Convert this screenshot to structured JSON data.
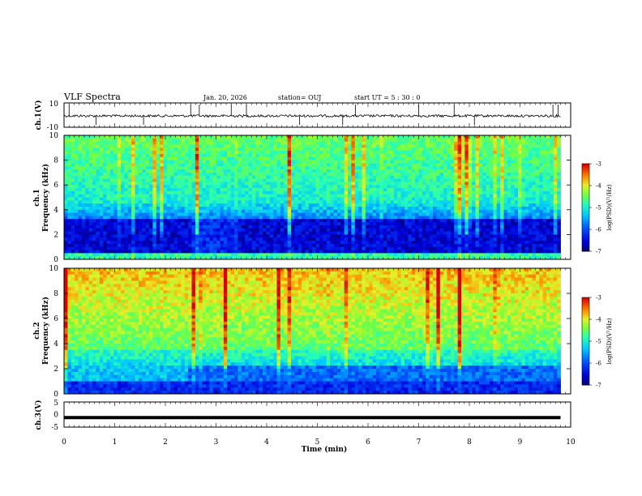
{
  "header": {
    "title": "VLF Spectra",
    "date": "Jan. 20, 2026",
    "station": "station= OUJ",
    "start": "start  UT =   5 : 30 : 0"
  },
  "chart_data": [
    {
      "type": "line",
      "ylabel": "ch.1(V)",
      "yticks": [
        "10",
        "-10"
      ],
      "ylim": [
        -10,
        10
      ],
      "xlim": [
        0,
        10
      ],
      "baseline": 0,
      "description_values": "noisy waveform around 0 V with spikes",
      "spikes_x": [
        0.1,
        0.63,
        1.57,
        2.5,
        2.67,
        3.3,
        3.6,
        4.65,
        5.5,
        5.75,
        7.0,
        7.7,
        8.1,
        9.65,
        9.75
      ]
    },
    {
      "type": "heatmap",
      "ylabel": "ch.1\nFrequency (kHz)",
      "ylabel_lines": [
        "ch.1",
        "Frequency (kHz)"
      ],
      "yticks": [
        "0",
        "2",
        "4",
        "6",
        "8",
        "10"
      ],
      "ylim": [
        0,
        10
      ],
      "xlim": [
        0,
        10
      ],
      "colorbar": {
        "label": "log(PSD)(V²/Hz)",
        "ticks": [
          "-3",
          "-4",
          "-5",
          "-6",
          "-7"
        ],
        "range": [
          -7,
          -3
        ]
      }
    },
    {
      "type": "heatmap",
      "ylabel": "ch.2\nFrequency (kHz)",
      "ylabel_lines": [
        "ch.2",
        "Frequency (kHz)"
      ],
      "yticks": [
        "0",
        "2",
        "4",
        "6",
        "8",
        "10"
      ],
      "ylim": [
        0,
        10
      ],
      "xlim": [
        0,
        10
      ],
      "colorbar": {
        "label": "log(PSD)(V²/Hz)",
        "ticks": [
          "-3",
          "-4",
          "-5",
          "-6",
          "-7"
        ],
        "range": [
          -7,
          -3
        ]
      }
    },
    {
      "type": "line",
      "ylabel": "ch.3(V)",
      "yticks": [
        "5",
        "0",
        "-5"
      ],
      "ylim": [
        -5,
        5
      ],
      "xlim": [
        0,
        10
      ],
      "values": [
        -1.2,
        -1.2
      ]
    }
  ],
  "xaxis": {
    "label": "Time (min)",
    "ticks": [
      "0",
      "1",
      "2",
      "3",
      "4",
      "5",
      "6",
      "7",
      "8",
      "9",
      "10"
    ]
  }
}
